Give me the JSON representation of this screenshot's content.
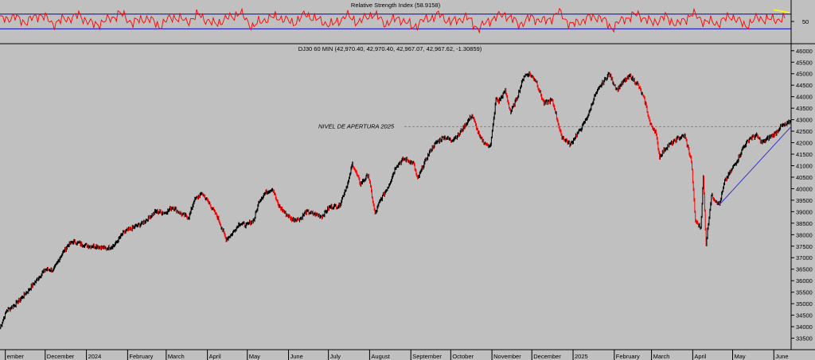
{
  "chart_data": [
    {
      "type": "line",
      "title": "Relative Strength Index (58.9158)",
      "ylim": [
        0,
        100
      ],
      "yticks": [
        50
      ],
      "bands": [
        30,
        70
      ],
      "colors": {
        "line": "#ff0000",
        "band": "#0000cc",
        "trend": "#ffff00"
      },
      "trend_segment": {
        "x_start": "2025-06-01",
        "x_end": "2025-06-13",
        "y_start": 82,
        "y_end": 74
      },
      "series": [
        {
          "values": [
            55,
            62,
            48,
            70,
            44,
            58,
            66,
            40,
            52,
            72,
            46,
            60,
            38,
            64,
            50,
            68,
            42,
            56,
            74,
            36,
            58,
            62,
            45,
            70,
            52,
            40,
            66,
            48,
            72,
            44,
            60,
            35,
            55,
            68,
            47,
            63,
            30,
            58,
            70,
            42,
            61,
            49,
            75,
            39,
            57,
            64,
            33,
            59,
            69,
            46,
            62,
            41,
            71,
            50,
            45,
            66,
            38,
            60,
            54,
            58.9
          ]
        }
      ]
    },
    {
      "type": "line",
      "title": "DJ30 60 MIN (42,970.40, 42,970.40, 42,967.07, 42,967.62, -1.30859)",
      "ylim": [
        33000,
        46200
      ],
      "yticks": [
        33500,
        34000,
        34500,
        35000,
        35500,
        36000,
        36500,
        37000,
        37500,
        38000,
        38500,
        39000,
        39500,
        40000,
        40500,
        41000,
        41500,
        42000,
        42500,
        43000,
        43500,
        44000,
        44500,
        45000,
        45500,
        46000
      ],
      "x_labels": [
        "ember",
        "December",
        "2024",
        "February",
        "March",
        "April",
        "May",
        "June",
        "July",
        "August",
        "September",
        "October",
        "November",
        "December",
        "2025",
        "February",
        "March",
        "April",
        "May",
        "June"
      ],
      "x_label_dates": [
        "2023-11-01",
        "2023-12-01",
        "2024-01-01",
        "2024-02-01",
        "2024-03-01",
        "2024-04-01",
        "2024-05-01",
        "2024-06-01",
        "2024-07-01",
        "2024-08-01",
        "2024-09-01",
        "2024-10-01",
        "2024-11-01",
        "2024-12-01",
        "2025-01-01",
        "2025-02-01",
        "2025-03-01",
        "2025-04-01",
        "2025-05-01",
        "2025-06-01"
      ],
      "x_range": [
        "2023-10-28",
        "2025-06-14"
      ],
      "annotation": {
        "text": "NIVEL DE APERTURA 2025",
        "level": 42700
      },
      "trendline": {
        "x_start": "2025-04-21",
        "y_start": 39300,
        "x_end": "2025-06-14",
        "y_end": 42700
      },
      "colors": {
        "line": "#000000",
        "highlight": "#ff0000",
        "trendline": "#3333cc",
        "level": "#808080"
      },
      "series": [
        {
          "name": "DJ30",
          "x": [
            "2023-10-28",
            "2023-11-02",
            "2023-11-08",
            "2023-11-14",
            "2023-11-20",
            "2023-11-27",
            "2023-12-01",
            "2023-12-07",
            "2023-12-13",
            "2023-12-18",
            "2023-12-22",
            "2023-12-28",
            "2024-01-03",
            "2024-01-09",
            "2024-01-16",
            "2024-01-22",
            "2024-01-29",
            "2024-02-05",
            "2024-02-12",
            "2024-02-16",
            "2024-02-22",
            "2024-02-29",
            "2024-03-06",
            "2024-03-12",
            "2024-03-18",
            "2024-03-22",
            "2024-03-28",
            "2024-04-03",
            "2024-04-09",
            "2024-04-15",
            "2024-04-19",
            "2024-04-25",
            "2024-04-30",
            "2024-05-06",
            "2024-05-10",
            "2024-05-15",
            "2024-05-20",
            "2024-05-24",
            "2024-05-30",
            "2024-06-04",
            "2024-06-10",
            "2024-06-14",
            "2024-06-20",
            "2024-06-26",
            "2024-07-02",
            "2024-07-09",
            "2024-07-16",
            "2024-07-19",
            "2024-07-25",
            "2024-07-31",
            "2024-08-05",
            "2024-08-09",
            "2024-08-15",
            "2024-08-21",
            "2024-08-27",
            "2024-09-03",
            "2024-09-06",
            "2024-09-11",
            "2024-09-16",
            "2024-09-20",
            "2024-09-26",
            "2024-10-01",
            "2024-10-07",
            "2024-10-11",
            "2024-10-17",
            "2024-10-23",
            "2024-10-28",
            "2024-10-31",
            "2024-11-04",
            "2024-11-06",
            "2024-11-11",
            "2024-11-15",
            "2024-11-20",
            "2024-11-25",
            "2024-11-29",
            "2024-12-04",
            "2024-12-10",
            "2024-12-16",
            "2024-12-18",
            "2024-12-23",
            "2024-12-30",
            "2025-01-03",
            "2025-01-08",
            "2025-01-13",
            "2025-01-17",
            "2025-01-22",
            "2025-01-28",
            "2025-02-03",
            "2025-02-07",
            "2025-02-13",
            "2025-02-19",
            "2025-02-24",
            "2025-02-28",
            "2025-03-04",
            "2025-03-07",
            "2025-03-12",
            "2025-03-17",
            "2025-03-21",
            "2025-03-26",
            "2025-03-31",
            "2025-04-03",
            "2025-04-07",
            "2025-04-09",
            "2025-04-11",
            "2025-04-15",
            "2025-04-21",
            "2025-04-25",
            "2025-04-30",
            "2025-05-05",
            "2025-05-09",
            "2025-05-14",
            "2025-05-19",
            "2025-05-23",
            "2025-05-28",
            "2025-06-02",
            "2025-06-06",
            "2025-06-11",
            "2025-06-14"
          ],
          "y": [
            33950,
            34700,
            34950,
            35300,
            35700,
            36200,
            36500,
            36450,
            37100,
            37550,
            37700,
            37600,
            37500,
            37500,
            37400,
            37550,
            38100,
            38300,
            38500,
            38700,
            39000,
            38950,
            39200,
            38900,
            38750,
            39500,
            39800,
            39300,
            38700,
            37800,
            38000,
            38500,
            38400,
            38650,
            39500,
            39850,
            40000,
            39300,
            38900,
            38650,
            38700,
            39000,
            38900,
            38800,
            39200,
            39250,
            40300,
            41100,
            40200,
            40600,
            38900,
            39500,
            40100,
            41000,
            41300,
            41100,
            40400,
            41100,
            41700,
            42000,
            42250,
            42100,
            42350,
            42700,
            43200,
            42200,
            41900,
            41900,
            43900,
            43800,
            44250,
            43300,
            44000,
            44900,
            45000,
            44700,
            43700,
            43850,
            43500,
            42300,
            41900,
            42300,
            42700,
            43300,
            44000,
            44500,
            45000,
            44300,
            44600,
            44900,
            44500,
            43800,
            42800,
            42500,
            41400,
            41800,
            42000,
            42200,
            42300,
            41200,
            38600,
            38300,
            40500,
            37600,
            39700,
            39300,
            40300,
            40800,
            41300,
            41800,
            42200,
            42300,
            42000,
            42200,
            42400,
            42700,
            42800,
            42967
          ]
        }
      ]
    }
  ]
}
